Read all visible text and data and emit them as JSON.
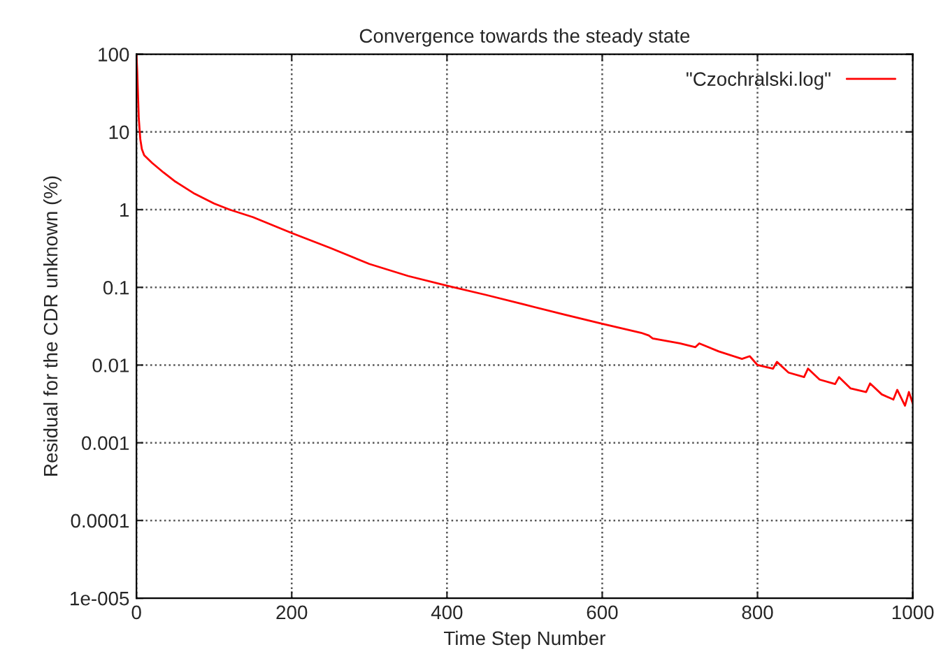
{
  "chart_data": {
    "type": "line",
    "title": "Convergence towards the steady state",
    "xlabel": "Time Step Number",
    "ylabel": "Residual for the CDR unknown (%)",
    "log": "y",
    "grid": true,
    "legend": "top right",
    "line_style": "solid",
    "marker": "none",
    "xlim": [
      0,
      1000
    ],
    "xticks": [
      0,
      200,
      400,
      600,
      800,
      1000
    ],
    "ylim": [
      1e-05,
      100
    ],
    "yticks": [
      {
        "value": 1e-05,
        "label": "1e-005"
      },
      {
        "value": 0.0001,
        "label": "0.0001"
      },
      {
        "value": 0.001,
        "label": "0.001"
      },
      {
        "value": 0.01,
        "label": "0.01"
      },
      {
        "value": 0.1,
        "label": "0.1"
      },
      {
        "value": 1,
        "label": "1"
      },
      {
        "value": 10,
        "label": "10"
      },
      {
        "value": 100,
        "label": "100"
      }
    ],
    "series": [
      {
        "name": "\"Czochralski.log\"",
        "color": "#ff0000",
        "x": [
          0,
          1,
          2,
          3,
          5,
          7,
          10,
          20,
          35,
          50,
          75,
          100,
          120,
          150,
          200,
          250,
          300,
          350,
          400,
          450,
          500,
          550,
          600,
          650,
          660,
          665,
          700,
          720,
          725,
          750,
          780,
          790,
          800,
          820,
          825,
          840,
          860,
          865,
          880,
          900,
          905,
          920,
          940,
          945,
          960,
          975,
          980,
          990,
          995,
          1000
        ],
        "values": [
          100,
          60,
          30,
          15,
          8,
          6,
          5,
          4,
          3,
          2.3,
          1.6,
          1.2,
          1.0,
          0.8,
          0.5,
          0.32,
          0.2,
          0.14,
          0.105,
          0.08,
          0.06,
          0.045,
          0.034,
          0.026,
          0.024,
          0.022,
          0.019,
          0.017,
          0.019,
          0.015,
          0.012,
          0.013,
          0.01,
          0.009,
          0.011,
          0.008,
          0.007,
          0.009,
          0.0065,
          0.0057,
          0.007,
          0.005,
          0.0045,
          0.0058,
          0.0042,
          0.0036,
          0.0048,
          0.003,
          0.0045,
          0.0032
        ]
      }
    ]
  }
}
